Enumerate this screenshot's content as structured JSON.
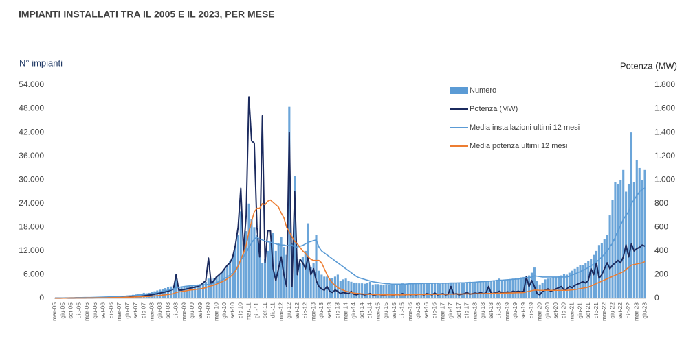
{
  "chart_data": {
    "type": "bar",
    "title": "IMPIANTI INSTALLATI TRA IL 2005 E IL 2023, PER MESE",
    "y_label": "N° impianti",
    "y2_label": "Potenza (MW)",
    "grid": false,
    "legend": "upper right",
    "ylim": [
      0,
      54000
    ],
    "yticks": [
      0,
      {
        "value": 6000,
        "label": "6.000"
      },
      {
        "value": 12000,
        "label": "12.000"
      },
      {
        "value": 18000,
        "label": "18.000"
      },
      {
        "value": 24000,
        "label": "24.000"
      },
      {
        "value": 30000,
        "label": "30.000"
      },
      {
        "value": 36000,
        "label": "36.000"
      },
      {
        "value": 42000,
        "label": "42.000"
      },
      {
        "value": 48000,
        "label": "48.000"
      },
      {
        "value": 54000,
        "label": "54.000"
      }
    ],
    "y2lim": [
      0,
      1800
    ],
    "y2ticks": [
      0,
      200,
      400,
      600,
      800,
      {
        "value": 1000,
        "label": "1.000"
      },
      {
        "value": 1200,
        "label": "1.200"
      },
      {
        "value": 1400,
        "label": "1.400"
      },
      {
        "value": 1600,
        "label": "1.600"
      },
      {
        "value": 1800,
        "label": "1.800"
      }
    ],
    "categories": [
      "mar-05",
      null,
      null,
      "giu-05",
      null,
      null,
      "set-05",
      null,
      null,
      "dic-05",
      null,
      null,
      "mar-06",
      null,
      null,
      "giu-06",
      null,
      null,
      "set-06",
      null,
      null,
      "dic-06",
      null,
      null,
      "mar-07",
      null,
      null,
      "giu-07",
      null,
      null,
      "set-07",
      null,
      null,
      "dic-07",
      null,
      null,
      "mar-08",
      null,
      null,
      "giu-08",
      null,
      null,
      "set-08",
      null,
      null,
      "dic-08",
      null,
      null,
      "mar-09",
      null,
      null,
      "giu-09",
      null,
      null,
      "set-09",
      null,
      null,
      "dic-09",
      null,
      null,
      "mar-10",
      null,
      null,
      "giu-10",
      null,
      null,
      "set-10",
      null,
      null,
      "dic-10",
      null,
      null,
      "mar-11",
      null,
      null,
      "giu-11",
      null,
      null,
      "set-11",
      null,
      null,
      "dic-11",
      null,
      null,
      "mar-12",
      null,
      null,
      "giu-12",
      null,
      null,
      "set-12",
      null,
      null,
      "dic-12",
      null,
      null,
      "mar-13",
      null,
      null,
      "giu-13",
      null,
      null,
      "set-13",
      null,
      null,
      "dic-13",
      null,
      null,
      "mar-14",
      null,
      null,
      "giu-14",
      null,
      null,
      "set-14",
      null,
      null,
      "dic-14",
      null,
      null,
      "mar-15",
      null,
      null,
      "giu-15",
      null,
      null,
      "set-15",
      null,
      null,
      "dic-15",
      null,
      null,
      "mar-16",
      null,
      null,
      "giu-16",
      null,
      null,
      "set-16",
      null,
      null,
      "dic-16",
      null,
      null,
      "mar-17",
      null,
      null,
      "giu-17",
      null,
      null,
      "set-17",
      null,
      null,
      "dic-17",
      null,
      null,
      "mar-18",
      null,
      null,
      "giu-18",
      null,
      null,
      "set-18",
      null,
      null,
      "dic-18",
      null,
      null,
      "mar-19",
      null,
      null,
      "giu-19",
      null,
      null,
      "set-19",
      null,
      null,
      "dic-19",
      null,
      null,
      "mar-20",
      null,
      null,
      "giu-20",
      null,
      null,
      "set-20",
      null,
      null,
      "dic-20",
      null,
      null,
      "mar-21",
      null,
      null,
      "giu-21",
      null,
      null,
      "set-21",
      null,
      null,
      "dic-21",
      null,
      null,
      "mar-22",
      null,
      null,
      "giu-22",
      null,
      null,
      "set-22",
      null,
      null,
      "dic-22",
      null,
      null,
      "mar-23",
      null,
      null,
      "giu-23"
    ],
    "series": [
      {
        "name": "Numero",
        "type": "bar",
        "color": "#5b9bd5",
        "values": [
          100,
          120,
          150,
          150,
          180,
          200,
          200,
          220,
          250,
          280,
          250,
          250,
          280,
          300,
          300,
          320,
          350,
          380,
          400,
          450,
          480,
          550,
          500,
          550,
          600,
          650,
          700,
          750,
          800,
          900,
          1000,
          1100,
          1200,
          1400,
          1300,
          1400,
          1600,
          1800,
          2000,
          2200,
          2400,
          2600,
          2800,
          3000,
          3200,
          6200,
          2800,
          2900,
          3000,
          3100,
          3200,
          3300,
          3400,
          3500,
          3600,
          3800,
          4200,
          5000,
          4500,
          5000,
          5500,
          6000,
          6500,
          7500,
          8500,
          9500,
          11000,
          13000,
          16000,
          22000,
          14000,
          17000,
          24000,
          20000,
          18000,
          16000,
          12000,
          9000,
          10000,
          12000,
          14000,
          16500,
          12000,
          14000,
          15500,
          13000,
          11000,
          48500,
          14000,
          31000,
          10000,
          9000,
          10500,
          12000,
          19000,
          8000,
          9000,
          16000,
          7000,
          6000,
          5500,
          5500,
          5000,
          5200,
          5500,
          6000,
          4500,
          4800,
          5000,
          4500,
          4200,
          4000,
          4000,
          3800,
          3800,
          3700,
          3900,
          4200,
          3500,
          3600,
          3600,
          3500,
          3400,
          3500,
          3500,
          3400,
          3500,
          3600,
          3700,
          3800,
          3600,
          3700,
          3800,
          3700,
          3800,
          3900,
          3800,
          3700,
          3800,
          3900,
          3800,
          3900,
          3800,
          3700,
          3800,
          3900,
          3800,
          3900,
          3800,
          3900,
          4000,
          3900,
          4000,
          4100,
          4200,
          4000,
          4100,
          4200,
          4300,
          4200,
          4400,
          4300,
          4500,
          4600,
          4700,
          5000,
          4600,
          4700,
          4800,
          4900,
          5000,
          5100,
          5200,
          5300,
          5400,
          5600,
          5800,
          6500,
          7800,
          4500,
          3500,
          4000,
          4800,
          5000,
          5200,
          5300,
          5400,
          5600,
          5800,
          6200,
          6000,
          6500,
          7000,
          7500,
          8000,
          8500,
          8500,
          9000,
          9500,
          10000,
          11000,
          12000,
          13500,
          14000,
          15000,
          16000,
          21000,
          25000,
          29500,
          29000,
          30000,
          32500,
          27000,
          29000,
          42000,
          29500,
          35000,
          33000,
          30000,
          32500
        ]
      },
      {
        "name": "Potenza (MW)",
        "type": "line",
        "axis": "y2",
        "color": "#1b2a5e",
        "values": [
          2,
          2,
          2,
          3,
          3,
          3,
          3,
          3,
          4,
          4,
          4,
          4,
          5,
          5,
          5,
          6,
          6,
          6,
          7,
          7,
          8,
          9,
          9,
          10,
          11,
          12,
          13,
          14,
          15,
          16,
          18,
          20,
          22,
          25,
          25,
          28,
          30,
          35,
          40,
          45,
          50,
          55,
          60,
          70,
          80,
          200,
          70,
          70,
          75,
          80,
          85,
          90,
          95,
          100,
          110,
          130,
          150,
          340,
          120,
          150,
          180,
          200,
          220,
          250,
          280,
          300,
          350,
          450,
          600,
          930,
          400,
          700,
          1700,
          1330,
          1310,
          600,
          350,
          1540,
          300,
          570,
          570,
          250,
          150,
          250,
          350,
          200,
          100,
          1400,
          100,
          900,
          200,
          330,
          300,
          250,
          350,
          200,
          250,
          150,
          100,
          80,
          70,
          100,
          60,
          50,
          70,
          60,
          40,
          50,
          45,
          40,
          60,
          35,
          30,
          40,
          35,
          30,
          35,
          40,
          30,
          30,
          35,
          30,
          30,
          30,
          35,
          30,
          30,
          35,
          30,
          40,
          30,
          35,
          30,
          35,
          30,
          35,
          35,
          30,
          40,
          35,
          30,
          45,
          30,
          35,
          40,
          30,
          35,
          100,
          35,
          40,
          30,
          35,
          40,
          50,
          35,
          40,
          45,
          40,
          50,
          40,
          45,
          100,
          40,
          45,
          50,
          60,
          45,
          50,
          55,
          50,
          60,
          55,
          60,
          55,
          60,
          180,
          100,
          150,
          100,
          40,
          30,
          60,
          70,
          80,
          60,
          70,
          80,
          90,
          100,
          70,
          80,
          100,
          90,
          110,
          120,
          130,
          140,
          130,
          150,
          250,
          200,
          300,
          170,
          200,
          250,
          300,
          250,
          280,
          300,
          320,
          300,
          350,
          450,
          350,
          460,
          400,
          420,
          430,
          450,
          440
        ]
      },
      {
        "name": "Media installazioni ultimi 12 mesi",
        "type": "line",
        "color": "#5b9bd5",
        "values": [
          100,
          110,
          120,
          130,
          140,
          150,
          160,
          170,
          180,
          200,
          210,
          220,
          230,
          240,
          260,
          280,
          300,
          320,
          340,
          360,
          380,
          400,
          420,
          450,
          480,
          520,
          560,
          600,
          650,
          700,
          750,
          800,
          850,
          950,
          1050,
          1150,
          1250,
          1350,
          1500,
          1650,
          1800,
          1950,
          2100,
          2250,
          2400,
          2700,
          2800,
          2900,
          3000,
          3100,
          3150,
          3200,
          3250,
          3300,
          3350,
          3400,
          3500,
          3500,
          3600,
          3800,
          4000,
          4300,
          4600,
          5000,
          5400,
          5900,
          6500,
          7300,
          8300,
          9700,
          10500,
          11500,
          13000,
          14000,
          15000,
          15500,
          15000,
          14800,
          14500,
          14300,
          14200,
          14000,
          13800,
          13600,
          13500,
          13500,
          13300,
          13500,
          13500,
          13000,
          13000,
          13200,
          13400,
          13800,
          14200,
          14400,
          14600,
          14800,
          13000,
          12000,
          11500,
          11000,
          10500,
          10000,
          9500,
          9000,
          8500,
          8000,
          7500,
          7000,
          6500,
          6000,
          5500,
          5200,
          5000,
          4800,
          4600,
          4400,
          4200,
          4100,
          4000,
          3900,
          3800,
          3700,
          3700,
          3600,
          3600,
          3600,
          3600,
          3600,
          3600,
          3650,
          3700,
          3700,
          3750,
          3750,
          3750,
          3800,
          3800,
          3800,
          3800,
          3850,
          3850,
          3850,
          3850,
          3850,
          3850,
          3900,
          3900,
          3900,
          3950,
          3950,
          3950,
          4000,
          4000,
          4050,
          4100,
          4150,
          4200,
          4250,
          4300,
          4350,
          4400,
          4450,
          4500,
          4600,
          4600,
          4650,
          4700,
          4750,
          4800,
          4850,
          4900,
          5000,
          5100,
          5200,
          5300,
          5400,
          5700,
          5600,
          5500,
          5400,
          5400,
          5400,
          5400,
          5400,
          5400,
          5400,
          5400,
          5400,
          5400,
          5600,
          5900,
          6200,
          6500,
          6800,
          7100,
          7400,
          7800,
          8200,
          8700,
          9200,
          9800,
          10500,
          11200,
          12000,
          13000,
          14000,
          15500,
          17000,
          18500,
          20000,
          21000,
          22000,
          24000,
          25000,
          26000,
          27000,
          27500,
          28000
        ]
      },
      {
        "name": "Media potenza ultimi 12 mesi",
        "type": "line",
        "axis": "y2",
        "color": "#ed7d31",
        "values": [
          2,
          2,
          2,
          2,
          2,
          3,
          3,
          3,
          3,
          3,
          3,
          3,
          4,
          4,
          4,
          4,
          5,
          5,
          5,
          5,
          6,
          6,
          7,
          7,
          8,
          8,
          9,
          10,
          10,
          11,
          12,
          13,
          14,
          15,
          16,
          17,
          19,
          21,
          23,
          25,
          28,
          30,
          33,
          36,
          40,
          50,
          55,
          58,
          62,
          65,
          70,
          72,
          75,
          78,
          80,
          85,
          90,
          100,
          105,
          110,
          120,
          130,
          140,
          150,
          165,
          180,
          200,
          230,
          270,
          330,
          380,
          450,
          560,
          650,
          730,
          760,
          760,
          800,
          790,
          820,
          830,
          810,
          790,
          770,
          720,
          680,
          600,
          560,
          520,
          480,
          460,
          430,
          400,
          380,
          350,
          330,
          320,
          320,
          320,
          300,
          250,
          200,
          160,
          130,
          110,
          90,
          80,
          70,
          60,
          55,
          50,
          45,
          42,
          40,
          38,
          36,
          35,
          34,
          33,
          32,
          32,
          31,
          31,
          30,
          30,
          30,
          30,
          30,
          30,
          30,
          31,
          31,
          32,
          32,
          32,
          33,
          33,
          33,
          33,
          34,
          34,
          34,
          34,
          34,
          35,
          35,
          36,
          36,
          36,
          37,
          37,
          37,
          37,
          38,
          38,
          38,
          39,
          39,
          40,
          40,
          41,
          42,
          42,
          43,
          43,
          44,
          44,
          45,
          45,
          46,
          46,
          47,
          48,
          48,
          49,
          55,
          60,
          65,
          70,
          70,
          68,
          68,
          68,
          68,
          68,
          68,
          68,
          68,
          68,
          68,
          68,
          70,
          72,
          75,
          78,
          82,
          86,
          90,
          95,
          105,
          115,
          125,
          135,
          145,
          155,
          165,
          175,
          185,
          195,
          205,
          215,
          225,
          245,
          260,
          280,
          285,
          290,
          295,
          300,
          310
        ]
      }
    ]
  }
}
